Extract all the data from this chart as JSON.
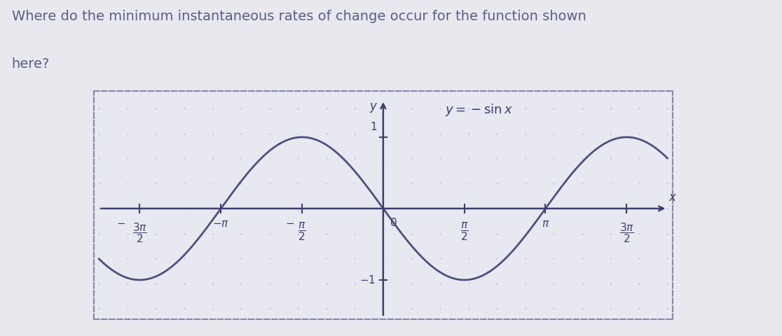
{
  "title_line1": "Where do the minimum instantaneous rates of change occur for the function shown",
  "title_line2": "here?",
  "title_fontsize": 14,
  "title_color": "#5a5f8a",
  "equation_label": "y = -\\sin x",
  "fig_bg_color": "#e8e8ee",
  "plot_bg_color": "#e8e8f0",
  "curve_color": "#4a5080",
  "axis_color": "#3a4070",
  "text_color": "#3a4070",
  "frame_color": "#8888aa",
  "dot_color": "#aaaacc",
  "xlim": [
    -5.6,
    5.6
  ],
  "ylim": [
    -1.55,
    1.65
  ],
  "curve_lw": 2.0,
  "axis_lw": 1.8,
  "tick_lw": 1.5,
  "frame_lw": 1.5
}
